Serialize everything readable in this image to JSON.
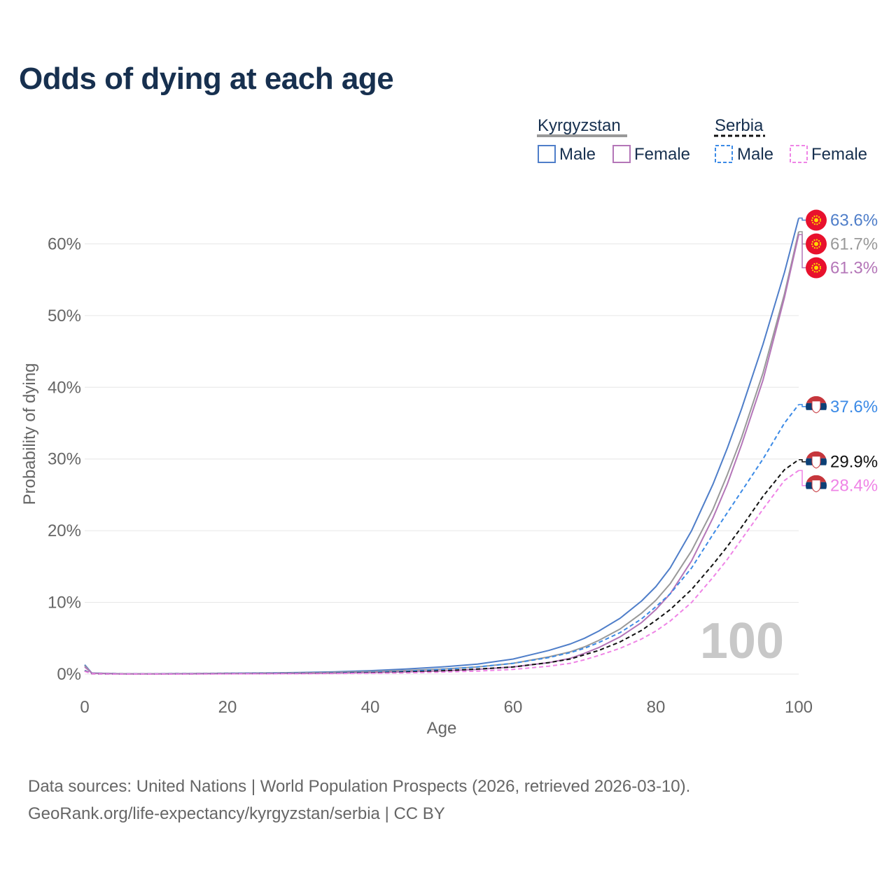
{
  "title": "Odds of dying at each age",
  "footer": {
    "line1": "Data sources: United Nations | World Population Prospects (2026, retrieved 2026-03-10).",
    "line2": "GeoRank.org/life-expectancy/kyrgyzstan/serbia | CC BY"
  },
  "colors": {
    "kg_male": "#4f7ec9",
    "kg_female": "#b476b8",
    "kg_total": "#999999",
    "rs_male": "#3b8ae6",
    "rs_female": "#ef84e6",
    "rs_total": "#111111",
    "grid": "#e6e6e6",
    "axis_text": "#666666",
    "watermark": "#c8c8c8",
    "legend_text": "#17304f",
    "flag_kg": "#e8112d",
    "flag_kg_sun": "#ffd700",
    "flag_rs_red": "#c6363c",
    "flag_rs_blue": "#0c4076"
  },
  "chart_data": {
    "type": "line",
    "title": "Odds of dying at each age",
    "xlabel": "Age",
    "ylabel": "Probability of dying",
    "xlim": [
      0,
      100
    ],
    "ylim": [
      0,
      70
    ],
    "x_ticks": [
      0,
      20,
      40,
      60,
      80,
      100
    ],
    "y_ticks": [
      0,
      10,
      20,
      30,
      40,
      50,
      60
    ],
    "y_tick_labels": [
      "0%",
      "10%",
      "20%",
      "30%",
      "40%",
      "50%",
      "60%"
    ],
    "grid": true,
    "watermark": "100",
    "legend": {
      "position": "top-right",
      "groups": [
        {
          "name": "Kyrgyzstan",
          "style": "solid",
          "items": [
            "Male",
            "Female"
          ]
        },
        {
          "name": "Serbia",
          "style": "dashed",
          "items": [
            "Male",
            "Female"
          ]
        }
      ]
    },
    "x": [
      0,
      1,
      5,
      10,
      15,
      20,
      25,
      30,
      35,
      40,
      45,
      50,
      55,
      60,
      65,
      68,
      70,
      72,
      75,
      78,
      80,
      82,
      85,
      88,
      90,
      92,
      95,
      98,
      100
    ],
    "series": [
      {
        "name": "Kyrgyzstan Male",
        "key": "kg_male",
        "country": "Kyrgyzstan",
        "dash": false,
        "end_label": "63.6%",
        "values": [
          1.3,
          0.15,
          0.05,
          0.05,
          0.08,
          0.12,
          0.16,
          0.22,
          0.32,
          0.48,
          0.7,
          1.0,
          1.4,
          2.1,
          3.3,
          4.2,
          5.0,
          6.0,
          7.8,
          10.2,
          12.2,
          14.8,
          20.0,
          26.5,
          31.5,
          37.0,
          46.0,
          56.0,
          63.6
        ]
      },
      {
        "name": "Kyrgyzstan Total",
        "key": "kg_total",
        "country": "Kyrgyzstan",
        "dash": false,
        "end_label": "61.7%",
        "values": [
          1.15,
          0.13,
          0.04,
          0.04,
          0.06,
          0.09,
          0.12,
          0.16,
          0.24,
          0.35,
          0.5,
          0.7,
          1.0,
          1.5,
          2.4,
          3.1,
          3.8,
          4.7,
          6.3,
          8.5,
          10.3,
          12.6,
          17.2,
          23.0,
          27.8,
          33.0,
          42.0,
          53.0,
          61.7
        ]
      },
      {
        "name": "Kyrgyzstan Female",
        "key": "kg_female",
        "country": "Kyrgyzstan",
        "dash": false,
        "end_label": "61.3%",
        "values": [
          1.0,
          0.12,
          0.03,
          0.03,
          0.04,
          0.06,
          0.08,
          0.1,
          0.15,
          0.22,
          0.32,
          0.45,
          0.65,
          1.0,
          1.6,
          2.2,
          2.9,
          3.7,
          5.2,
          7.2,
          9.0,
          11.2,
          15.8,
          21.8,
          26.5,
          32.0,
          41.0,
          52.5,
          61.3
        ]
      },
      {
        "name": "Serbia Male",
        "key": "rs_male",
        "country": "Serbia",
        "dash": true,
        "end_label": "37.6%",
        "values": [
          0.5,
          0.05,
          0.02,
          0.02,
          0.04,
          0.07,
          0.09,
          0.11,
          0.16,
          0.25,
          0.4,
          0.65,
          1.0,
          1.5,
          2.3,
          3.0,
          3.6,
          4.4,
          5.8,
          7.7,
          9.4,
          11.2,
          14.8,
          19.5,
          22.5,
          25.5,
          30.0,
          35.0,
          37.6
        ]
      },
      {
        "name": "Serbia Total",
        "key": "rs_total",
        "country": "Serbia",
        "dash": true,
        "end_label": "29.9%",
        "values": [
          0.45,
          0.04,
          0.02,
          0.01,
          0.03,
          0.05,
          0.06,
          0.08,
          0.12,
          0.18,
          0.28,
          0.45,
          0.7,
          1.0,
          1.6,
          2.1,
          2.7,
          3.3,
          4.5,
          6.1,
          7.5,
          9.0,
          11.8,
          15.3,
          17.8,
          20.5,
          24.8,
          28.5,
          29.9
        ]
      },
      {
        "name": "Serbia Female",
        "key": "rs_female",
        "country": "Serbia",
        "dash": true,
        "end_label": "28.4%",
        "values": [
          0.4,
          0.04,
          0.01,
          0.01,
          0.02,
          0.03,
          0.04,
          0.05,
          0.08,
          0.12,
          0.18,
          0.28,
          0.42,
          0.65,
          1.1,
          1.5,
          2.0,
          2.6,
          3.6,
          4.9,
          6.0,
          7.4,
          10.0,
          13.5,
          16.0,
          18.8,
          23.0,
          27.0,
          28.4
        ]
      }
    ]
  }
}
